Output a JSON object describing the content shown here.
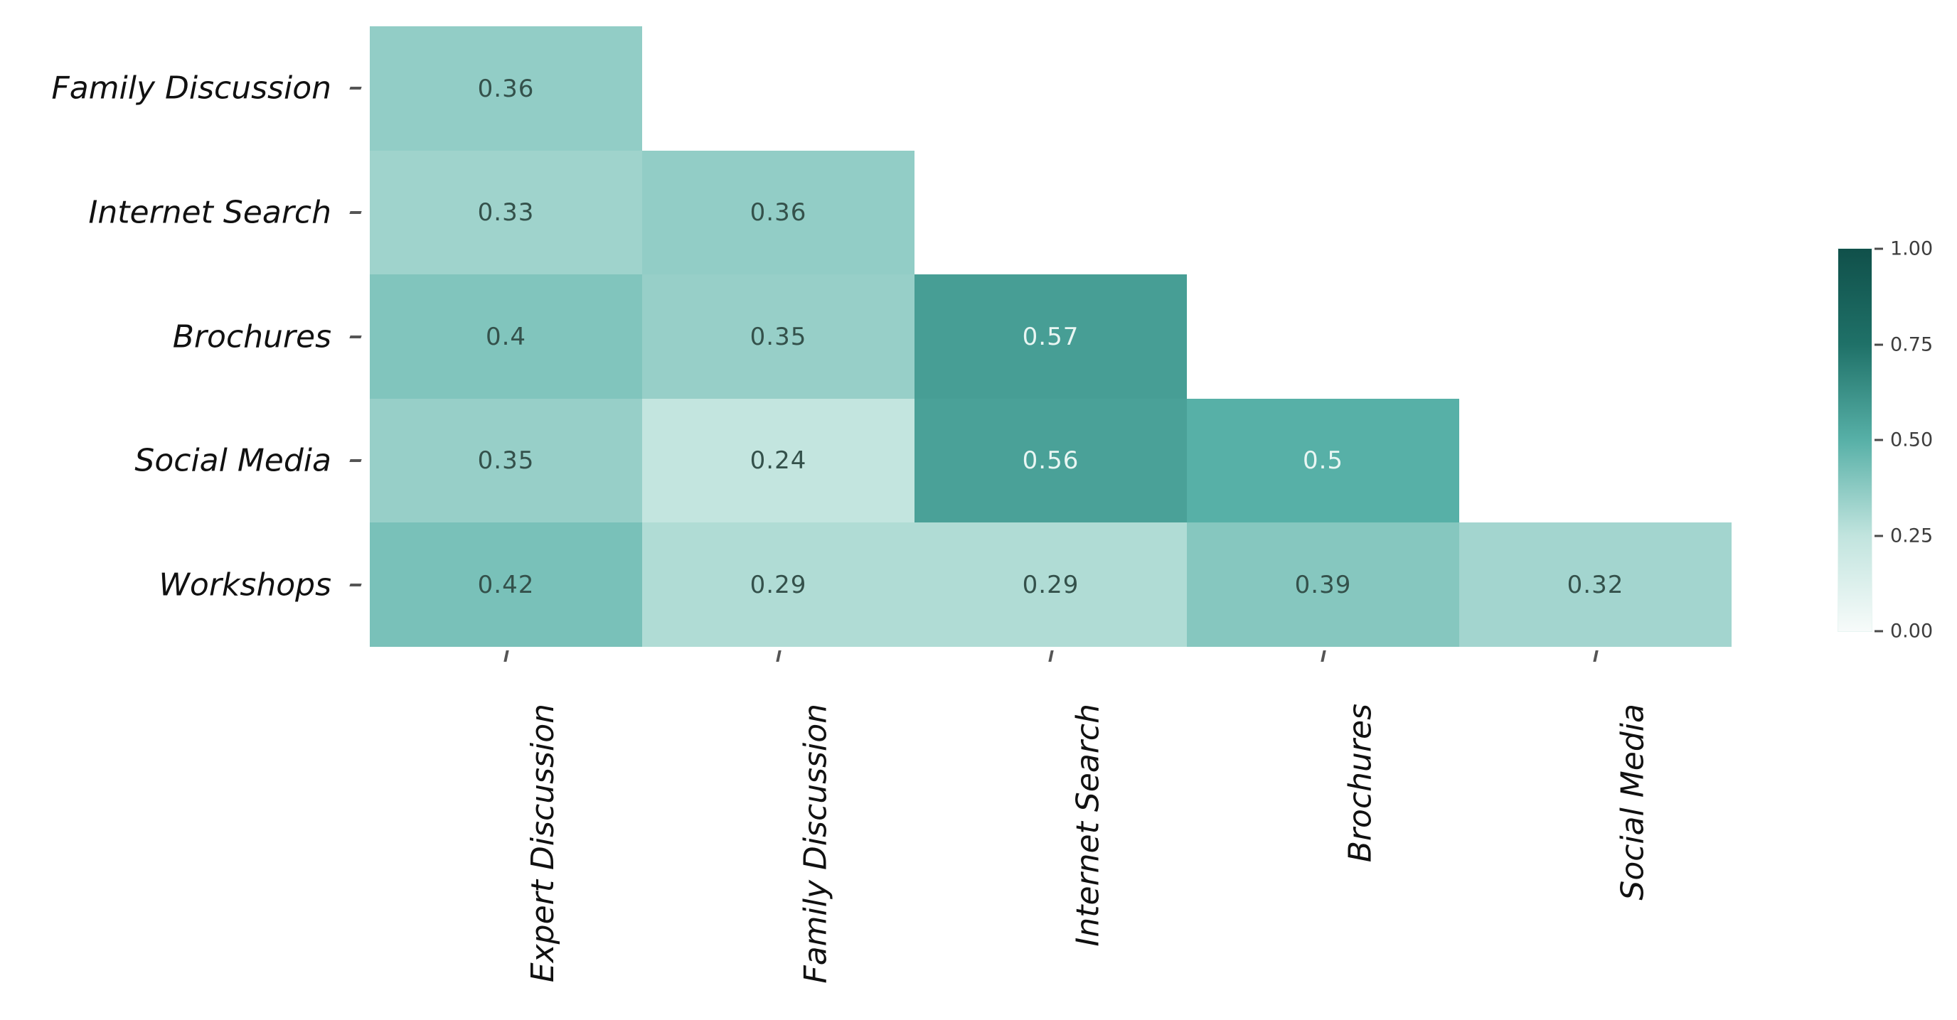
{
  "chart_data": {
    "type": "heatmap",
    "title": "",
    "description": "Lower-triangular correlation heatmap of information sources",
    "rows": [
      "Family Discussion",
      "Internet Search",
      "Brochures",
      "Social Media",
      "Workshops"
    ],
    "columns": [
      "Expert Discussion",
      "Family Discussion",
      "Internet Search",
      "Brochures",
      "Social Media"
    ],
    "values": [
      [
        0.36,
        null,
        null,
        null,
        null
      ],
      [
        0.33,
        0.36,
        null,
        null,
        null
      ],
      [
        0.4,
        0.35,
        0.57,
        null,
        null
      ],
      [
        0.35,
        0.24,
        0.56,
        0.5,
        null
      ],
      [
        0.42,
        0.29,
        0.29,
        0.39,
        0.32
      ]
    ],
    "value_range": [
      0,
      1
    ],
    "grid": false,
    "legend_position": "right",
    "colorbar": {
      "ticks": [
        "1.00",
        "0.75",
        "0.50",
        "0.25",
        "0.00"
      ],
      "tick_values": [
        1.0,
        0.75,
        0.5,
        0.25,
        0.0
      ],
      "min": 0,
      "max": 1
    },
    "colormap": {
      "stops": [
        {
          "v": 0.0,
          "c": "#f7fbfa"
        },
        {
          "v": 0.25,
          "c": "#c1e4de"
        },
        {
          "v": 0.5,
          "c": "#57b0a7"
        },
        {
          "v": 0.75,
          "c": "#1f7168"
        },
        {
          "v": 1.0,
          "c": "#10504a"
        }
      ]
    },
    "cell_text_dark": "#34514b",
    "cell_text_light": "#e9f6f3",
    "cell_text_light_threshold": 0.45,
    "background_color": "#ffffff",
    "axis_tick_color": "#555555",
    "label_color": "#111111"
  }
}
